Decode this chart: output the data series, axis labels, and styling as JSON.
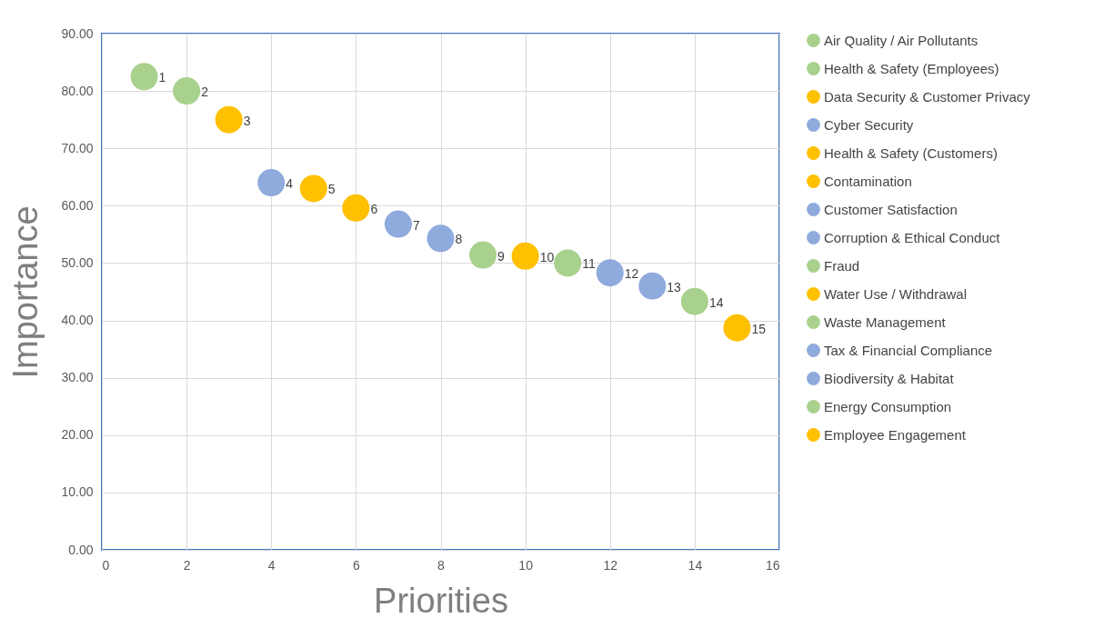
{
  "chart_data": {
    "type": "scatter",
    "xlabel": "Priorities",
    "ylabel": "Importance",
    "xlim": [
      0,
      16
    ],
    "xticks": [
      0,
      2,
      4,
      6,
      8,
      10,
      12,
      14,
      16
    ],
    "ylim": [
      0,
      90
    ],
    "yticks": [
      {
        "value": 0,
        "label": "0.00"
      },
      {
        "value": 10,
        "label": "10.00"
      },
      {
        "value": 20,
        "label": "20.00"
      },
      {
        "value": 30,
        "label": "30.00"
      },
      {
        "value": 40,
        "label": "40.00"
      },
      {
        "value": 50,
        "label": "50.00"
      },
      {
        "value": 60,
        "label": "60.00"
      },
      {
        "value": 70,
        "label": "70.00"
      },
      {
        "value": 80,
        "label": "80.00"
      },
      {
        "value": 90,
        "label": "90.00"
      }
    ],
    "grid": true,
    "legend": "right",
    "marker": "circle",
    "series": [
      {
        "name": "Air Quality / Air Pollutants",
        "color": "#a9d18e",
        "x": [
          1
        ],
        "values": [
          82.5
        ]
      },
      {
        "name": "Health & Safety (Employees)",
        "color": "#a9d18e",
        "x": [
          2
        ],
        "values": [
          80
        ]
      },
      {
        "name": "Data Security & Customer Privacy",
        "color": "#ffc000",
        "x": [
          3
        ],
        "values": [
          75
        ]
      },
      {
        "name": "Cyber Security",
        "color": "#8faadc",
        "x": [
          4
        ],
        "values": [
          64
        ]
      },
      {
        "name": "Health & Safety (Customers)",
        "color": "#ffc000",
        "x": [
          5
        ],
        "values": [
          63
        ]
      },
      {
        "name": "Contamination",
        "color": "#ffc000",
        "x": [
          6
        ],
        "values": [
          59.6
        ]
      },
      {
        "name": "Customer Satisfaction",
        "color": "#8faadc",
        "x": [
          7
        ],
        "values": [
          56.8
        ]
      },
      {
        "name": "Corruption & Ethical Conduct",
        "color": "#8faadc",
        "x": [
          8
        ],
        "values": [
          54.3
        ]
      },
      {
        "name": "Fraud",
        "color": "#a9d18e",
        "x": [
          9
        ],
        "values": [
          51.4
        ]
      },
      {
        "name": "Water Use / Withdrawal",
        "color": "#ffc000",
        "x": [
          10
        ],
        "values": [
          51.2
        ]
      },
      {
        "name": "Waste Management",
        "color": "#a9d18e",
        "x": [
          11
        ],
        "values": [
          50
        ]
      },
      {
        "name": "Tax & Financial Compliance",
        "color": "#8faadc",
        "x": [
          12
        ],
        "values": [
          48.3
        ]
      },
      {
        "name": "Biodiversity & Habitat",
        "color": "#8faadc",
        "x": [
          13
        ],
        "values": [
          46
        ]
      },
      {
        "name": "Energy Consumption",
        "color": "#a9d18e",
        "x": [
          14
        ],
        "values": [
          43.3
        ]
      },
      {
        "name": "Employee Engagement",
        "color": "#ffc000",
        "x": [
          15
        ],
        "values": [
          38.7
        ]
      }
    ],
    "annotations": [
      {
        "text": "1",
        "x": 1,
        "y": 82.5
      },
      {
        "text": "2",
        "x": 2,
        "y": 80
      },
      {
        "text": "3",
        "x": 3,
        "y": 75
      },
      {
        "text": "4",
        "x": 4,
        "y": 64
      },
      {
        "text": "5",
        "x": 5,
        "y": 63
      },
      {
        "text": "6",
        "x": 6,
        "y": 59.6
      },
      {
        "text": "7",
        "x": 7,
        "y": 56.8
      },
      {
        "text": "8",
        "x": 8,
        "y": 54.3
      },
      {
        "text": "9",
        "x": 9,
        "y": 51.4
      },
      {
        "text": "10",
        "x": 10,
        "y": 51.2
      },
      {
        "text": "11",
        "x": 11,
        "y": 50
      },
      {
        "text": "12",
        "x": 12,
        "y": 48.3
      },
      {
        "text": "13",
        "x": 13,
        "y": 46
      },
      {
        "text": "14",
        "x": 14,
        "y": 43.3
      },
      {
        "text": "15",
        "x": 15,
        "y": 38.7
      }
    ]
  }
}
